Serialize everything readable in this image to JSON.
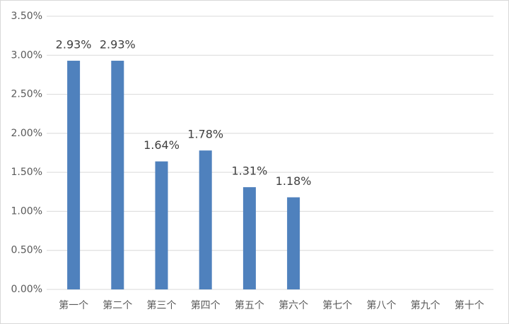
{
  "chart_data": {
    "type": "bar",
    "categories": [
      "第一个",
      "第二个",
      "第三个",
      "第四个",
      "第五个",
      "第六个",
      "第七个",
      "第八个",
      "第九个",
      "第十个"
    ],
    "values": [
      2.93,
      2.93,
      1.64,
      1.78,
      1.31,
      1.18,
      null,
      null,
      null,
      null
    ],
    "value_labels": [
      "2.93%",
      "2.93%",
      "1.64%",
      "1.78%",
      "1.31%",
      "1.18%",
      null,
      null,
      null,
      null
    ],
    "color": "#4f81bd",
    "ylim": [
      0,
      3.5
    ],
    "yticks": [
      {
        "value": 0,
        "label": "0.00%"
      },
      {
        "value": 0.5,
        "label": "0.50%"
      },
      {
        "value": 1,
        "label": "1.00%"
      },
      {
        "value": 1.5,
        "label": "1.50%"
      },
      {
        "value": 2,
        "label": "2.00%"
      },
      {
        "value": 2.5,
        "label": "2.50%"
      },
      {
        "value": 3,
        "label": "3.00%"
      },
      {
        "value": 3.5,
        "label": "3.50%"
      }
    ],
    "grid": true
  }
}
